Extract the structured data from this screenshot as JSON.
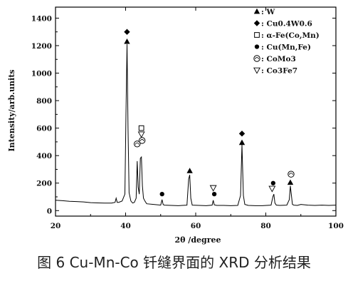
{
  "caption": "图 6 Cu-Mn-Co 钎缝界面的 XRD 分析结果",
  "chart_data": {
    "type": "line",
    "xlabel": "2θ /degree",
    "ylabel": "Intensity/arb.units",
    "xlim": [
      20,
      100
    ],
    "ylim": [
      -40,
      1480
    ],
    "xticks": [
      20,
      40,
      60,
      80,
      100
    ],
    "yticks": [
      0,
      200,
      400,
      600,
      800,
      1000,
      1200,
      1400
    ],
    "grid": false,
    "legend_position": "top-right",
    "series": [
      {
        "x": [
          20,
          22,
          24,
          26,
          28,
          30,
          32,
          34,
          36,
          37,
          37.3,
          37.6,
          38,
          39,
          39.8,
          40.1,
          40.4,
          40.7,
          41,
          41.5,
          42,
          42.5,
          43,
          43.3,
          43.6,
          43.9,
          44.2,
          44.5,
          44.8,
          45.1,
          45.5,
          46,
          48,
          50,
          50.4,
          50.7,
          51,
          53,
          55,
          57.5,
          58,
          58.3,
          58.6,
          59,
          61,
          63,
          64.7,
          65,
          65.3,
          66,
          68,
          70,
          72,
          72.8,
          73.2,
          73.6,
          74,
          75,
          77,
          79,
          81.5,
          82,
          82.3,
          82.6,
          83,
          84,
          86,
          86.7,
          87,
          87.3,
          87.6,
          88,
          89,
          90,
          92,
          94,
          96,
          98,
          100
        ],
        "y": [
          75,
          72,
          68,
          66,
          63,
          58,
          56,
          55,
          55,
          60,
          90,
          60,
          60,
          70,
          120,
          700,
          1210,
          600,
          130,
          70,
          55,
          60,
          90,
          360,
          170,
          120,
          380,
          390,
          180,
          90,
          70,
          50,
          45,
          40,
          80,
          45,
          40,
          38,
          36,
          40,
          230,
          260,
          90,
          40,
          38,
          36,
          40,
          75,
          42,
          38,
          38,
          36,
          38,
          110,
          480,
          110,
          45,
          38,
          36,
          36,
          40,
          100,
          120,
          55,
          40,
          38,
          40,
          80,
          180,
          110,
          45,
          40,
          38,
          45,
          40,
          38,
          40,
          38,
          40
        ]
      }
    ],
    "legend": [
      {
        "symbol": "triangle-filled",
        "label": ": W"
      },
      {
        "symbol": "diamond-filled",
        "label": ": Cu0.4W0.6"
      },
      {
        "symbol": "square-open",
        "label": ": α-Fe(Co,Mn)"
      },
      {
        "symbol": "circle-filled",
        "label": ": Cu(Mn,Fe)"
      },
      {
        "symbol": "circle-half",
        "label": ": CoMo3"
      },
      {
        "symbol": "triangle-open",
        "label": ": Co3Fe7"
      }
    ],
    "annotations": [
      {
        "symbol": "diamond-filled",
        "x": 40.4,
        "y": 1300
      },
      {
        "symbol": "triangle-filled",
        "x": 40.4,
        "y": 1230
      },
      {
        "symbol": "square-open",
        "x": 44.5,
        "y": 600
      },
      {
        "symbol": "triangle-open",
        "x": 44.5,
        "y": 555
      },
      {
        "symbol": "circle-half",
        "x": 43.3,
        "y": 485
      },
      {
        "symbol": "circle-half",
        "x": 44.7,
        "y": 510
      },
      {
        "symbol": "circle-filled",
        "x": 50.4,
        "y": 120
      },
      {
        "symbol": "triangle-filled",
        "x": 58.3,
        "y": 290
      },
      {
        "symbol": "triangle-open",
        "x": 65.0,
        "y": 165
      },
      {
        "symbol": "circle-filled",
        "x": 65.3,
        "y": 120
      },
      {
        "symbol": "diamond-filled",
        "x": 73.2,
        "y": 560
      },
      {
        "symbol": "triangle-filled",
        "x": 73.2,
        "y": 495
      },
      {
        "symbol": "circle-filled",
        "x": 82.1,
        "y": 200
      },
      {
        "symbol": "triangle-open",
        "x": 81.8,
        "y": 160
      },
      {
        "symbol": "circle-half",
        "x": 87.2,
        "y": 265
      },
      {
        "symbol": "triangle-filled",
        "x": 87.0,
        "y": 205
      }
    ]
  }
}
